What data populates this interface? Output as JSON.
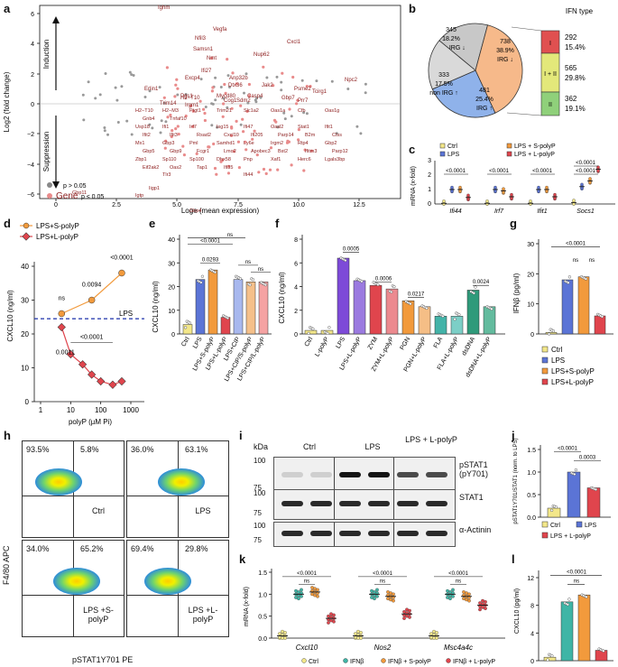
{
  "labels": [
    "a",
    "b",
    "c",
    "d",
    "e",
    "f",
    "g",
    "h",
    "i",
    "j",
    "k",
    "l"
  ],
  "panel_a": {
    "ylabel": "Log2 (fold change)",
    "xlabel": "Loge (mean expression)",
    "induction": "Induction",
    "suppression": "Suppression",
    "yticks": [
      "6",
      "4",
      "2",
      "0",
      "−2",
      "−4",
      "−6"
    ],
    "xticks": [
      "0",
      "2.5",
      "5.0",
      "7.5",
      "10.0",
      "12.5"
    ],
    "legend_gray": "p > 0.05",
    "legend_red_gene": "Gene",
    "legend_red": "p ≤ 0.05",
    "genes_up": [
      "Ighm",
      "Vegfa",
      "Nfil3",
      "Samsn1",
      "Nmt",
      "Cxcl1",
      "Nup62",
      "Ifi27",
      "Excp4",
      "Anp32b",
      "Dtx36",
      "Jak2",
      "Psme2",
      "Tcirg1",
      "Npc2",
      "H2−T10",
      "Irgm1",
      "Trim14",
      "Mycd80",
      "Sdm2",
      "Pgs1",
      "Cog1",
      "Erlin1",
      "Casp4",
      "Gbp7",
      "Prr7"
    ],
    "genes_down": [
      "H2−T10",
      "H2−M3",
      "Ptgt1",
      "Trim21",
      "Slc1a2",
      "Oas1a",
      "Cfb",
      "Oas1g",
      "Gnb4",
      "Tnfaf10",
      "Gbp11",
      "Igtp",
      "Gbp4",
      "Tlr3",
      "Iigp1",
      "Ifi44",
      "Usp18",
      "Ifi1",
      "Irf7",
      "Isg15",
      "Ifi47",
      "Oasl2",
      "Stat1",
      "Ifit1",
      "Ifit2",
      "Ifit3",
      "Rsad2",
      "Cxcl10",
      "Ifi205",
      "Parp14",
      "B2m",
      "Ctss",
      "Mx1",
      "Gbp3",
      "Pml",
      "Samhd1",
      "Ly6e",
      "Irgm2",
      "Rtp4",
      "Gbp2",
      "Gbp5",
      "Gbp9",
      "Fcgr1",
      "Lmo2",
      "Apobec3",
      "Bst2",
      "Ifitm3",
      "Parp12",
      "Zbp1",
      "Sp110",
      "Sp100",
      "Dhx58",
      "Pnp",
      "Xaf1",
      "Herc6",
      "Lgals3bp",
      "Eif2ak2",
      "Oas2",
      "Tap1",
      "Ifi35"
    ]
  },
  "panel_b": {
    "slices": [
      {
        "value": 345,
        "pct": "18.2%",
        "label": "non IRG ↓"
      },
      {
        "value": 738,
        "pct": "38.9%",
        "label": "IRG ↓"
      },
      {
        "value": 481,
        "pct": "25.4%",
        "label": "IRG ↑"
      },
      {
        "value": 333,
        "pct": "17.5%",
        "label": "non IRG ↑"
      }
    ],
    "ifn_title": "IFN type",
    "ifn_types": [
      {
        "type": "I",
        "count": "292",
        "pct": "15.4%"
      },
      {
        "type": "I + II",
        "count": "565",
        "pct": "29.8%"
      },
      {
        "type": "II",
        "count": "362",
        "pct": "19.1%"
      }
    ]
  },
  "panel_c": {
    "ylabel": "mRNA (x-fold)",
    "yticks": [
      "0",
      "1",
      "2",
      "3"
    ],
    "genes": [
      "Ifi44",
      "Irf7",
      "Ifit1",
      "Socs1"
    ],
    "pvals": [
      "<0.0001",
      "<0.0001",
      "<0.0001",
      "<0.0001",
      "<0.0001"
    ],
    "legend": [
      "Ctrl",
      "LPS",
      "LPS + S-polyP",
      "LPS + L-polyP"
    ]
  },
  "panel_d": {
    "ylabel": "CXCL10 (ng/ml)",
    "xlabel": "polyP (µM Pi)",
    "yticks": [
      "0",
      "10",
      "20",
      "30",
      "40"
    ],
    "xticks": [
      "1",
      "10",
      "100",
      "1000"
    ],
    "legend": [
      "LPS+S-polyP",
      "LPS+L-polyP"
    ],
    "lps_label": "LPS",
    "pvals": [
      "ns",
      "0.0094",
      "<0.0001",
      "0.0011",
      "<0.0001"
    ]
  },
  "panel_e": {
    "ylabel": "CXCL10 (ng/ml)",
    "yticks": [
      "0",
      "10",
      "20",
      "30",
      "40"
    ],
    "categories": [
      "Ctrl",
      "LPS",
      "LPS+S-polyP",
      "LPS+L-polyP",
      "LPS+CIP",
      "LPS+CIP/S-polyP",
      "LPS+CIP/L-polyP"
    ],
    "values": [
      4,
      23,
      27,
      7,
      23,
      22,
      22
    ],
    "pvals": [
      "<0.0001",
      "ns",
      "0.0293",
      "ns",
      "ns"
    ]
  },
  "panel_f": {
    "ylabel": "CXCL10 (ng/ml)",
    "yticks": [
      "0",
      "2",
      "4",
      "6",
      "8"
    ],
    "categories": [
      "Ctrl",
      "L-polyP",
      "LPS",
      "LPS+L-polyP",
      "ZYM",
      "ZYM+L-polyP",
      "PGN",
      "PGN+L-polyP",
      "FLA",
      "FLA+L-polyP",
      "dsDNA",
      "dsDNA+L-polyP"
    ],
    "values": [
      0.3,
      0.3,
      6.4,
      4.5,
      4.1,
      3.8,
      2.8,
      2.3,
      1.5,
      1.5,
      3.7,
      2.3
    ],
    "pvals": [
      "0.0005",
      "0.0006",
      "0.0217",
      "0.0024"
    ]
  },
  "panel_g": {
    "ylabel": "IFNβ (pg/ml)",
    "yticks": [
      "0",
      "10",
      "20",
      "30"
    ],
    "values": [
      0.5,
      18,
      19,
      6
    ],
    "pvals": [
      "<0.0001",
      "ns",
      "ns"
    ],
    "legend": [
      "Ctrl",
      "LPS",
      "LPS+S-polyP",
      "LPS+L-polyP"
    ]
  },
  "panel_h": {
    "ylabel": "F4/80 APC",
    "xlabel": "pSTAT1Y701 PE",
    "plots": [
      {
        "name": "Ctrl",
        "left": "93.5%",
        "right": "5.8%"
      },
      {
        "name": "LPS",
        "left": "36.0%",
        "right": "63.1%"
      },
      {
        "name": "LPS +S-polyP",
        "left": "34.0%",
        "right": "65.2%"
      },
      {
        "name": "LPS +L-polyP",
        "left": "69.4%",
        "right": "29.8%"
      }
    ]
  },
  "panel_i": {
    "kda": "kDa",
    "lanes": [
      "Ctrl",
      "LPS",
      "LPS + L-polyP"
    ],
    "bands": [
      "pSTAT1 (pY701)",
      "STAT1",
      "α-Actinin"
    ],
    "markers": [
      "100",
      "75",
      "100",
      "75",
      "100",
      "75"
    ]
  },
  "panel_j": {
    "ylabel": "pSTAT1Y701/STAT1 (norm. to LPS)",
    "yticks": [
      "0.0",
      "0.5",
      "1.0",
      "1.5"
    ],
    "values": [
      0.2,
      1.0,
      0.65
    ],
    "pvals": [
      "<0.0001",
      "0.0003"
    ],
    "legend": [
      "Ctrl",
      "LPS",
      "LPS + L-polyP"
    ]
  },
  "panel_k": {
    "ylabel": "mRNA (x-fold)",
    "yticks": [
      "0.0",
      "0.5",
      "1.0",
      "1.5"
    ],
    "genes": [
      "Cxcl10",
      "Nos2",
      "Msc4a4c"
    ],
    "pvals": [
      "<0.0001",
      "<0.0001",
      "<0.0001"
    ],
    "legend": [
      "Ctrl",
      "IFNβ",
      "IFNβ + S-polyP",
      "IFNβ + L-polyP"
    ]
  },
  "panel_l": {
    "ylabel": "CXCL10 (pg/ml)",
    "yticks": [
      "0",
      "4",
      "8",
      "12"
    ],
    "values": [
      0.5,
      8.5,
      9.5,
      1.5
    ],
    "pvals": [
      "<0.0001",
      "ns"
    ]
  },
  "colors": {
    "ctrl": "#f3e78a",
    "lps": "#5b74d6",
    "spolyp": "#f29a3c",
    "lpolyp": "#e0454d",
    "red_gene": "#8b1a1a"
  }
}
